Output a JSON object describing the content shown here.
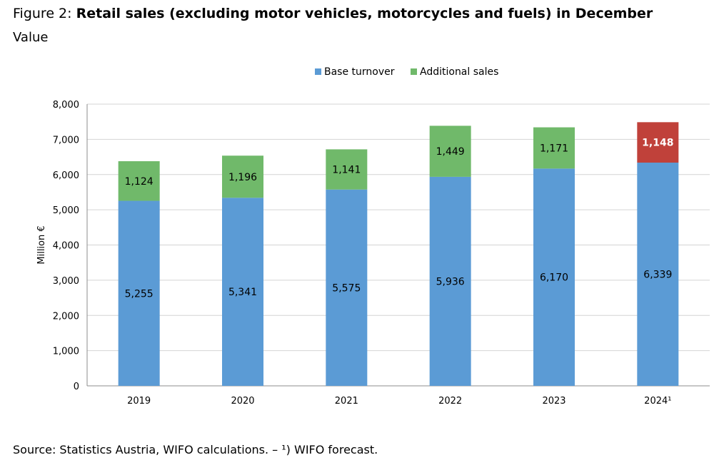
{
  "header": {
    "figure_label": "Figure 2:",
    "title": "Retail sales (excluding motor vehicles, motorcycles and fuels) in December",
    "subtitle": "Value"
  },
  "footer": {
    "source": "Source: Statistics Austria, WIFO calculations. – ¹) WIFO forecast."
  },
  "chart_data": {
    "type": "bar",
    "stacked": true,
    "title": "Retail sales (excluding motor vehicles, motorcycles and fuels) in December",
    "subtitle": "Value",
    "xlabel": "",
    "ylabel": "Million €",
    "ylim": [
      0,
      8000
    ],
    "yticks": [
      0,
      1000,
      2000,
      3000,
      4000,
      5000,
      6000,
      7000,
      8000
    ],
    "ytick_labels": [
      "0",
      "1,000",
      "2,000",
      "3,000",
      "4,000",
      "5,000",
      "6,000",
      "7,000",
      "8,000"
    ],
    "grid": true,
    "legend_position": "top-center",
    "categories": [
      "2019",
      "2020",
      "2021",
      "2022",
      "2023",
      "2024¹"
    ],
    "series": [
      {
        "name": "Base turnover",
        "color": "#5b9bd5",
        "values": [
          5255,
          5341,
          5575,
          5936,
          6170,
          6339
        ],
        "labels": [
          "5,255",
          "5,341",
          "5,575",
          "5,936",
          "6,170",
          "6,339"
        ]
      },
      {
        "name": "Additional sales",
        "color": "#70b96a",
        "values": [
          1124,
          1196,
          1141,
          1449,
          1171,
          1148
        ],
        "labels": [
          "1,124",
          "1,196",
          "1,141",
          "1,449",
          "1,171",
          "1,148"
        ]
      }
    ],
    "highlight": {
      "category_index": 5,
      "series_index": 1,
      "color": "#c0413a",
      "label_color": "#ffffff",
      "label_bold": true
    }
  }
}
